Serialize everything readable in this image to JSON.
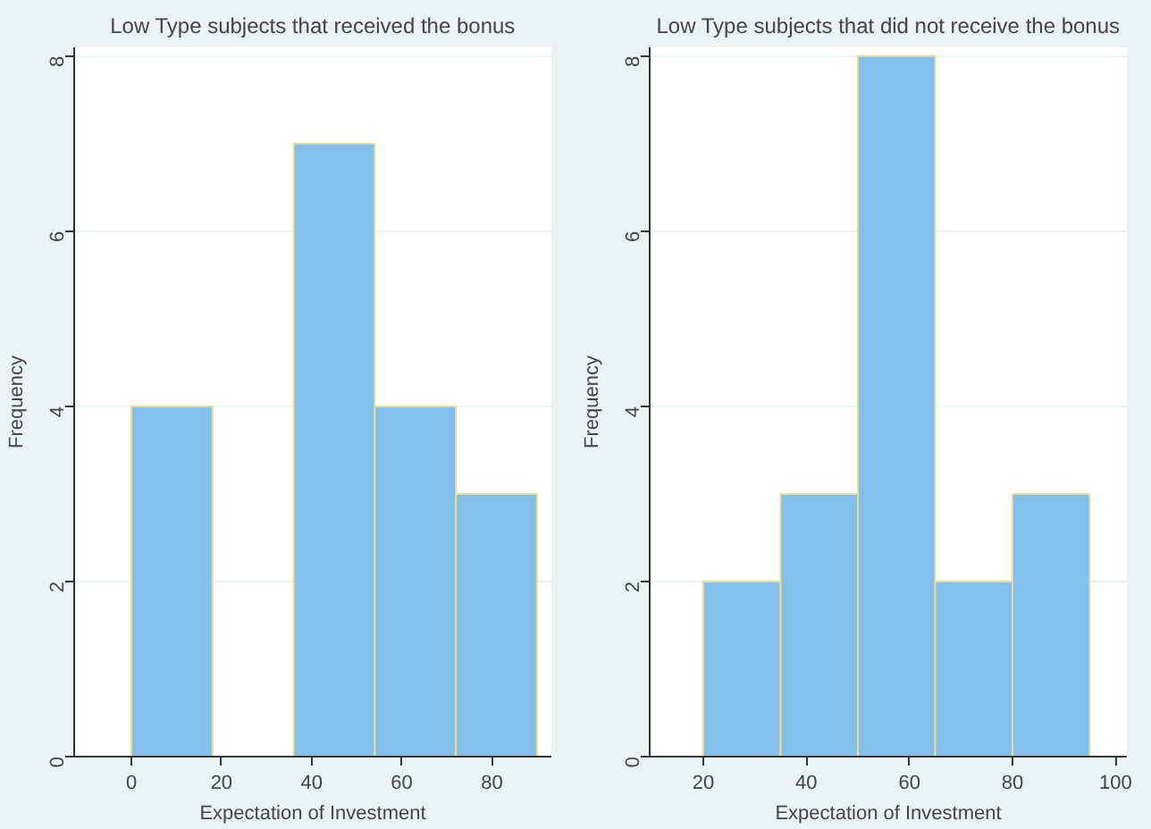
{
  "chart_data": [
    {
      "type": "histogram",
      "title": "Low Type subjects that received the bonus",
      "xlabel": "Expectation of Investment",
      "ylabel": "Frequency",
      "bins": [
        0,
        18,
        36,
        54,
        72,
        90
      ],
      "values": [
        4,
        0,
        7,
        4,
        3
      ],
      "color": "#83bfe8",
      "xlim": [
        -12.7,
        93.2
      ],
      "ylim": [
        0,
        8.1
      ],
      "xticks": [
        0,
        20,
        40,
        60,
        80
      ],
      "yticks": [
        0,
        2,
        4,
        6,
        8
      ],
      "grid": "y"
    },
    {
      "type": "histogram",
      "title": "Low Type subjects that did not receive the bonus",
      "xlabel": "Expectation of Investment",
      "ylabel": "Frequency",
      "bins": [
        20,
        35,
        50,
        65,
        80,
        95
      ],
      "values": [
        2,
        3,
        8,
        2,
        3
      ],
      "color": "#83bfe8",
      "xlim": [
        9.6,
        102.2
      ],
      "ylim": [
        0,
        8.1
      ],
      "xticks": [
        20,
        40,
        60,
        80,
        100
      ],
      "yticks": [
        0,
        2,
        4,
        6,
        8
      ],
      "grid": "y"
    }
  ]
}
